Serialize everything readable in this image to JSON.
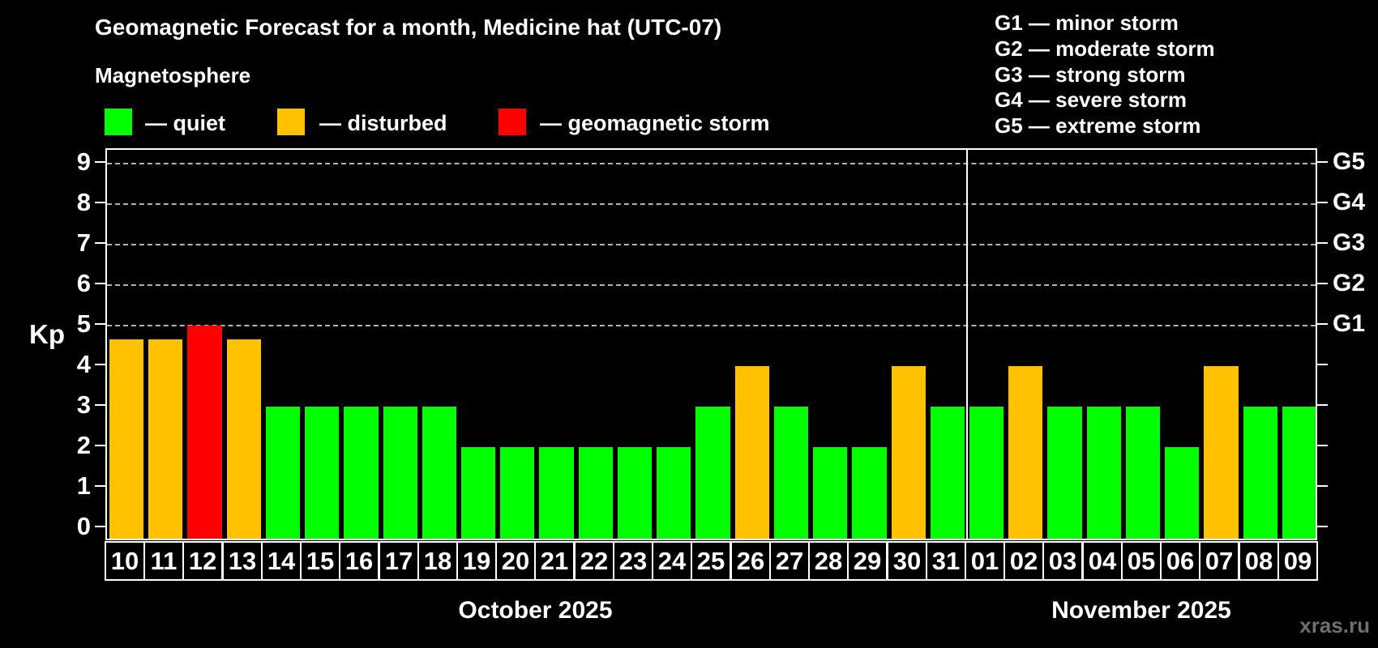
{
  "title": "Geomagnetic Forecast for a month, Medicine hat (UTC-07)",
  "subtitle": "Magnetosphere",
  "legend": {
    "items": [
      {
        "state": "quiet",
        "label": "— quiet",
        "color": "#00ff00"
      },
      {
        "state": "disturbed",
        "label": "— disturbed",
        "color": "#ffc100"
      },
      {
        "state": "storm",
        "label": "— geomagnetic storm",
        "color": "#ff0000"
      }
    ]
  },
  "storm_scale_legend": [
    {
      "label": "G1 — minor storm"
    },
    {
      "label": "G2 — moderate storm"
    },
    {
      "label": "G3 — strong storm"
    },
    {
      "label": "G4 — severe storm"
    },
    {
      "label": "G5 — extreme storm"
    }
  ],
  "watermark": "xras.ru",
  "colors": {
    "quiet": "#00ff00",
    "disturbed": "#ffc100",
    "storm": "#ff0000",
    "grid": "#b3b3b3",
    "axis": "#ffffff",
    "watermark": "#6f6f6f"
  },
  "chart_data": {
    "type": "bar",
    "title": "Geomagnetic Forecast for a month, Medicine hat (UTC-07)",
    "xlabel": "",
    "ylabel": "Kp",
    "ylim": [
      -0.34,
      9.34
    ],
    "y_ticks": [
      0,
      1,
      2,
      3,
      4,
      5,
      6,
      7,
      8,
      9
    ],
    "grid_dashed_at": [
      5,
      6,
      7,
      8,
      9
    ],
    "legend_position": "top",
    "right_axis_labels": [
      {
        "label": "G1",
        "kp": 5
      },
      {
        "label": "G2",
        "kp": 6
      },
      {
        "label": "G3",
        "kp": 7
      },
      {
        "label": "G4",
        "kp": 8
      },
      {
        "label": "G5",
        "kp": 9
      }
    ],
    "categories": [
      "10",
      "11",
      "12",
      "13",
      "14",
      "15",
      "16",
      "17",
      "18",
      "19",
      "20",
      "21",
      "22",
      "23",
      "24",
      "25",
      "26",
      "27",
      "28",
      "29",
      "30",
      "31",
      "01",
      "02",
      "03",
      "04",
      "05",
      "06",
      "07",
      "08",
      "09"
    ],
    "values": [
      4.67,
      4.67,
      5.0,
      4.67,
      3,
      3,
      3,
      3,
      3,
      2,
      2,
      2,
      2,
      2,
      2,
      3,
      4,
      3,
      2,
      2,
      4,
      3,
      3,
      4,
      3,
      3,
      3,
      2,
      4,
      3,
      3
    ],
    "states": [
      "disturbed",
      "disturbed",
      "storm",
      "disturbed",
      "quiet",
      "quiet",
      "quiet",
      "quiet",
      "quiet",
      "quiet",
      "quiet",
      "quiet",
      "quiet",
      "quiet",
      "quiet",
      "quiet",
      "disturbed",
      "quiet",
      "quiet",
      "quiet",
      "disturbed",
      "quiet",
      "quiet",
      "disturbed",
      "quiet",
      "quiet",
      "quiet",
      "quiet",
      "disturbed",
      "quiet",
      "quiet"
    ],
    "months": [
      {
        "label": "October 2025",
        "start": 0,
        "count": 22
      },
      {
        "label": "November 2025",
        "start": 22,
        "count": 9
      }
    ]
  }
}
